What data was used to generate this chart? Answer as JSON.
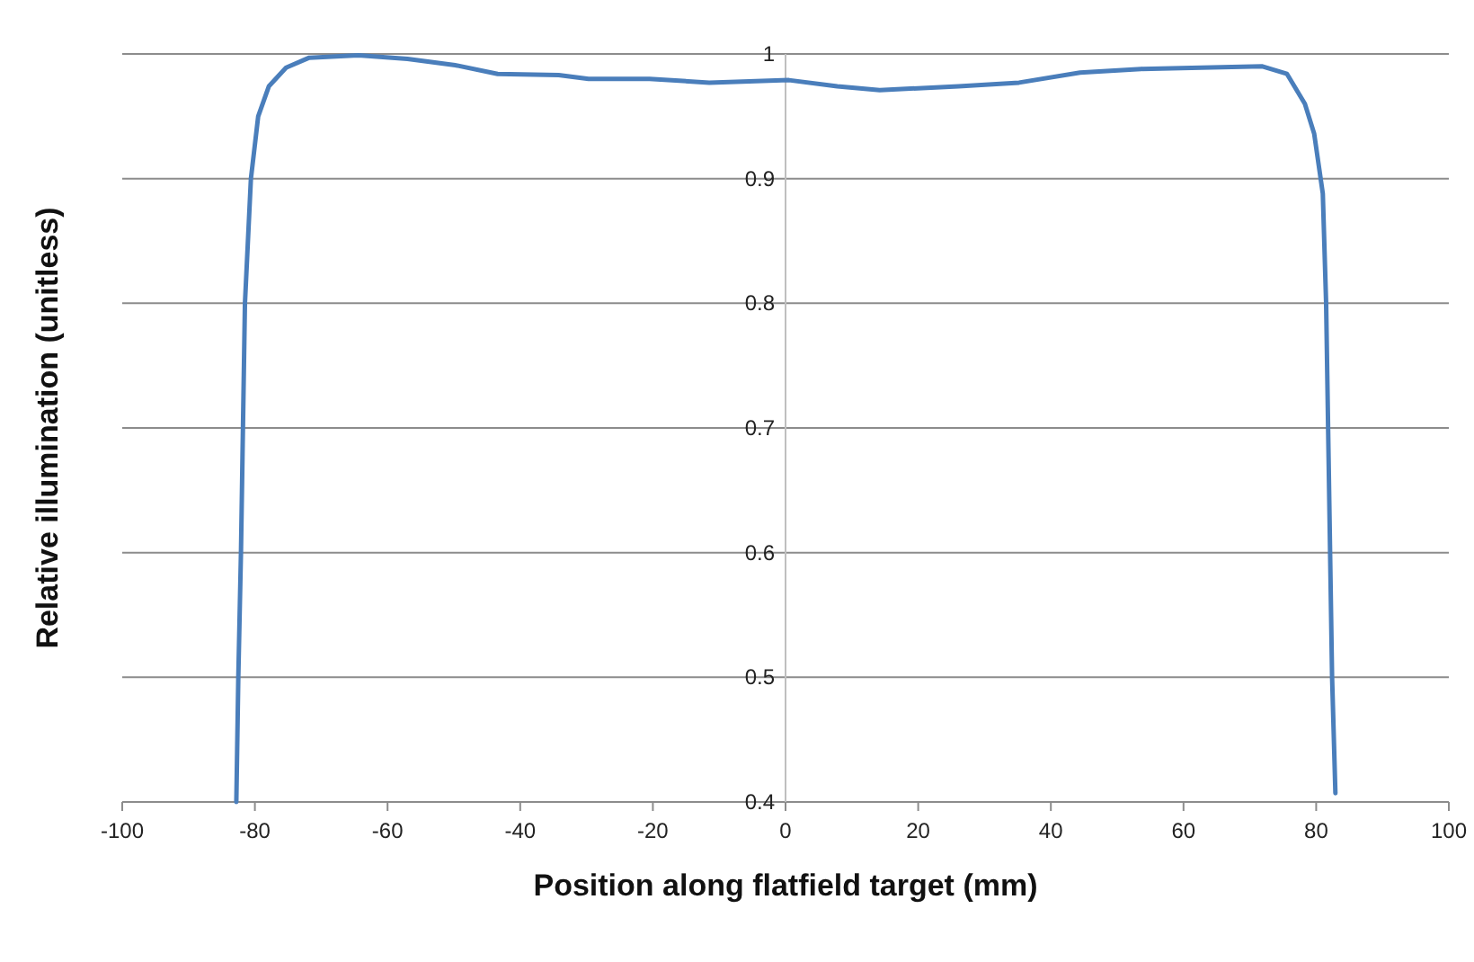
{
  "chart_data": {
    "type": "line",
    "xlabel": "Position along flatfield target (mm)",
    "ylabel": "Relative illumination (unitless)",
    "xlim": [
      -100,
      100
    ],
    "xticks": [
      -100,
      -80,
      -60,
      -40,
      -20,
      0,
      20,
      40,
      60,
      80,
      100
    ],
    "ylim": [
      0.4,
      1
    ],
    "yticks": [
      0.4,
      0.5,
      0.6,
      0.7,
      0.8,
      0.9,
      1
    ],
    "grid": "y",
    "marker": "none",
    "line_style": "solid",
    "series": [
      {
        "color": "#4a7ebb",
        "x": [
          -82.8,
          -82.5,
          -82.1,
          -81.5,
          -80.6,
          -79.5,
          -77.9,
          -75.3,
          -71.8,
          -64.4,
          -57,
          -49.8,
          -43.4,
          -34.2,
          -29.7,
          -20.5,
          -11.5,
          0.5,
          7.8,
          14.2,
          26.1,
          35.2,
          44.4,
          53.6,
          62.7,
          71.9,
          75.6,
          78.3,
          79.7,
          81.0,
          81.5,
          82.1,
          82.4,
          82.9
        ],
        "values": [
          0.4,
          0.5,
          0.6,
          0.8,
          0.9,
          0.95,
          0.974,
          0.989,
          0.997,
          0.999,
          0.996,
          0.991,
          0.984,
          0.983,
          0.98,
          0.98,
          0.977,
          0.979,
          0.974,
          0.971,
          0.974,
          0.977,
          0.985,
          0.988,
          0.989,
          0.99,
          0.984,
          0.96,
          0.936,
          0.888,
          0.8,
          0.6,
          0.5,
          0.407
        ]
      }
    ]
  }
}
